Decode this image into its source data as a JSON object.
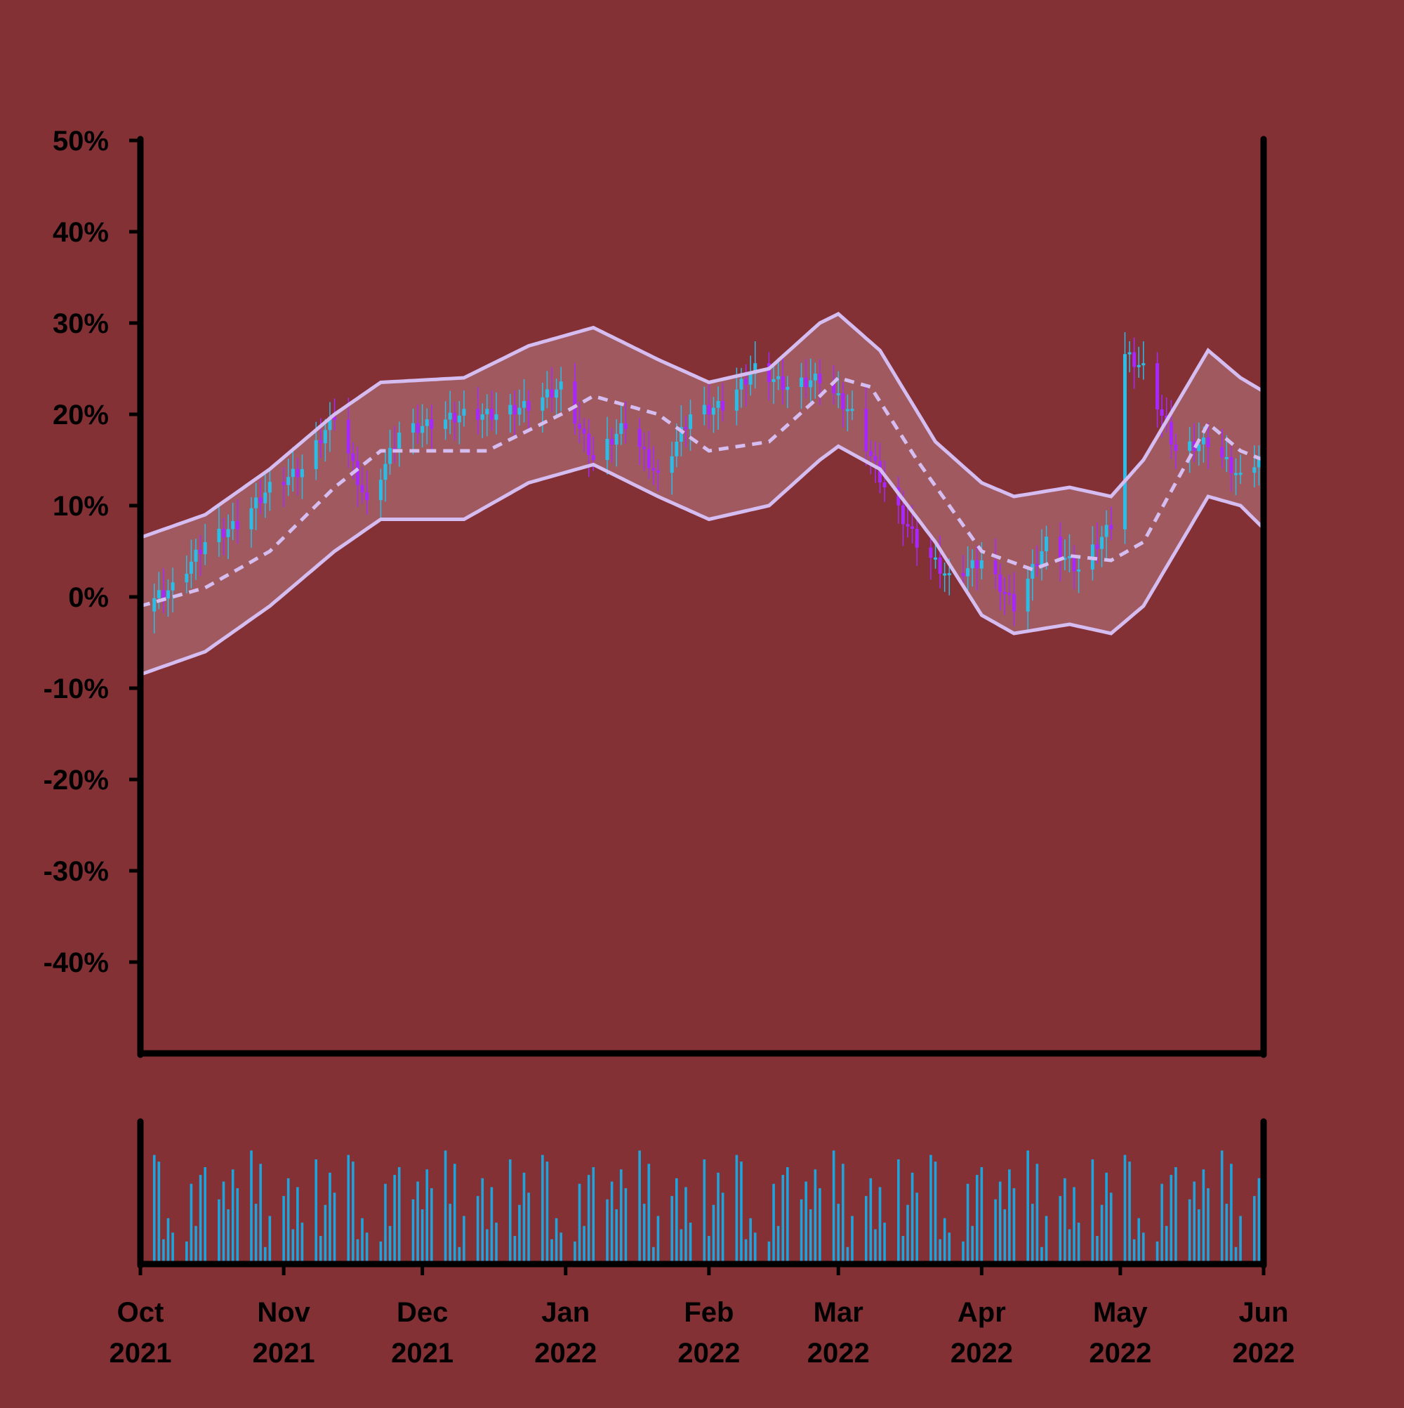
{
  "colors": {
    "background": "#843136",
    "band_fill": "#a05a5f",
    "band_line": "#d5bdf1",
    "candle_up": "#2bbde6",
    "candle_down": "#a927ff",
    "volume": "#1fa3da",
    "axis": "#000000"
  },
  "chart_data": {
    "type": "candlestick",
    "title": "",
    "xlabel": "",
    "ylabel": "",
    "y_unit": "percent",
    "ylim": [
      -50,
      50
    ],
    "y_ticks": [
      50,
      40,
      30,
      20,
      10,
      0,
      -10,
      -20,
      -30,
      -40
    ],
    "y_tick_labels": [
      "50%",
      "40%",
      "30%",
      "20%",
      "10%",
      "0%",
      "-10%",
      "-20%",
      "-30%",
      "-40%"
    ],
    "x_range": [
      "2021-10-01",
      "2022-06-01"
    ],
    "x_ticks": [
      "2021-10-01",
      "2021-11-01",
      "2021-12-01",
      "2022-01-01",
      "2022-02-01",
      "2022-03-01",
      "2022-04-01",
      "2022-05-01",
      "2022-06-01"
    ],
    "x_tick_labels": [
      [
        "Oct",
        "2021"
      ],
      [
        "Nov",
        "2021"
      ],
      [
        "Dec",
        "2021"
      ],
      [
        "Jan",
        "2022"
      ],
      [
        "Feb",
        "2022"
      ],
      [
        "Mar",
        "2022"
      ],
      [
        "Apr",
        "2022"
      ],
      [
        "May",
        "2022"
      ],
      [
        "Jun",
        "2022"
      ]
    ],
    "grid": false,
    "legend": "none",
    "close_anchors": [
      [
        "2021-10-01",
        -1
      ],
      [
        "2021-10-08",
        1
      ],
      [
        "2021-10-15",
        6
      ],
      [
        "2021-10-22",
        8
      ],
      [
        "2021-10-29",
        12
      ],
      [
        "2021-11-05",
        14
      ],
      [
        "2021-11-12",
        20
      ],
      [
        "2021-11-19",
        10
      ],
      [
        "2021-11-26",
        18
      ],
      [
        "2021-12-03",
        19
      ],
      [
        "2021-12-10",
        20
      ],
      [
        "2021-12-17",
        20
      ],
      [
        "2021-12-24",
        21
      ],
      [
        "2021-12-31",
        23
      ],
      [
        "2022-01-07",
        15
      ],
      [
        "2022-01-14",
        19
      ],
      [
        "2022-01-21",
        13
      ],
      [
        "2022-01-28",
        20
      ],
      [
        "2022-02-04",
        21
      ],
      [
        "2022-02-11",
        25
      ],
      [
        "2022-02-18",
        23
      ],
      [
        "2022-02-25",
        24
      ],
      [
        "2022-03-04",
        20
      ],
      [
        "2022-03-11",
        12
      ],
      [
        "2022-03-18",
        6
      ],
      [
        "2022-03-25",
        2
      ],
      [
        "2022-04-01",
        4
      ],
      [
        "2022-04-08",
        -1
      ],
      [
        "2022-04-15",
        6
      ],
      [
        "2022-04-22",
        3
      ],
      [
        "2022-04-29",
        8
      ],
      [
        "2022-05-01",
        27
      ],
      [
        "2022-05-06",
        25
      ],
      [
        "2022-05-13",
        16
      ],
      [
        "2022-05-20",
        17
      ],
      [
        "2022-05-27",
        13
      ],
      [
        "2022-06-01",
        16
      ]
    ],
    "bollinger_middle_anchors": [
      [
        "2021-10-01",
        -1
      ],
      [
        "2021-10-15",
        1
      ],
      [
        "2021-10-29",
        5
      ],
      [
        "2021-11-12",
        12
      ],
      [
        "2021-11-22",
        16
      ],
      [
        "2021-12-01",
        16
      ],
      [
        "2021-12-15",
        16
      ],
      [
        "2021-12-31",
        20
      ],
      [
        "2022-01-07",
        22
      ],
      [
        "2022-01-21",
        20
      ],
      [
        "2022-02-01",
        16
      ],
      [
        "2022-02-14",
        17
      ],
      [
        "2022-02-25",
        22
      ],
      [
        "2022-03-01",
        24
      ],
      [
        "2022-03-08",
        23
      ],
      [
        "2022-03-18",
        15
      ],
      [
        "2022-04-01",
        5
      ],
      [
        "2022-04-12",
        3
      ],
      [
        "2022-04-20",
        4.5
      ],
      [
        "2022-04-29",
        4
      ],
      [
        "2022-05-06",
        6
      ],
      [
        "2022-05-20",
        19
      ],
      [
        "2022-05-27",
        16
      ],
      [
        "2022-06-01",
        15
      ]
    ],
    "bollinger_upper_anchors": [
      [
        "2021-10-01",
        6.5
      ],
      [
        "2021-10-15",
        9
      ],
      [
        "2021-10-29",
        14
      ],
      [
        "2021-11-12",
        20
      ],
      [
        "2021-11-22",
        23.5
      ],
      [
        "2021-12-10",
        24
      ],
      [
        "2021-12-24",
        27.5
      ],
      [
        "2022-01-07",
        29.5
      ],
      [
        "2022-01-21",
        26
      ],
      [
        "2022-02-01",
        23.5
      ],
      [
        "2022-02-14",
        25
      ],
      [
        "2022-02-25",
        30
      ],
      [
        "2022-03-01",
        31
      ],
      [
        "2022-03-10",
        27
      ],
      [
        "2022-03-22",
        17
      ],
      [
        "2022-04-01",
        12.5
      ],
      [
        "2022-04-08",
        11
      ],
      [
        "2022-04-20",
        12
      ],
      [
        "2022-04-29",
        11
      ],
      [
        "2022-05-06",
        15
      ],
      [
        "2022-05-20",
        27
      ],
      [
        "2022-05-27",
        24
      ],
      [
        "2022-06-01",
        22.5
      ]
    ],
    "bollinger_lower_anchors": [
      [
        "2021-10-01",
        -8.5
      ],
      [
        "2021-10-15",
        -6
      ],
      [
        "2021-10-29",
        -1
      ],
      [
        "2021-11-12",
        5
      ],
      [
        "2021-11-22",
        8.5
      ],
      [
        "2021-12-10",
        8.5
      ],
      [
        "2021-12-24",
        12.5
      ],
      [
        "2022-01-07",
        14.5
      ],
      [
        "2022-01-21",
        11
      ],
      [
        "2022-02-01",
        8.5
      ],
      [
        "2022-02-14",
        10
      ],
      [
        "2022-02-25",
        15
      ],
      [
        "2022-03-01",
        16.5
      ],
      [
        "2022-03-10",
        14
      ],
      [
        "2022-03-22",
        6
      ],
      [
        "2022-04-01",
        -2
      ],
      [
        "2022-04-08",
        -4
      ],
      [
        "2022-04-20",
        -3
      ],
      [
        "2022-04-29",
        -4
      ],
      [
        "2022-05-06",
        -1
      ],
      [
        "2022-05-20",
        11
      ],
      [
        "2022-05-27",
        10
      ],
      [
        "2022-06-01",
        7.5
      ]
    ],
    "volume_relative_pattern": [
      0.58,
      0.92,
      0.86,
      0.16,
      0.35,
      0.22,
      0.14,
      0.66,
      0.28,
      0.74,
      0.81,
      0.52,
      0.68,
      0.43,
      0.79,
      0.62,
      0.96,
      0.48,
      0.84,
      0.09,
      0.37,
      0.55,
      0.71,
      0.25,
      0.63,
      0.31,
      0.88,
      0.19,
      0.47,
      0.76
    ]
  }
}
